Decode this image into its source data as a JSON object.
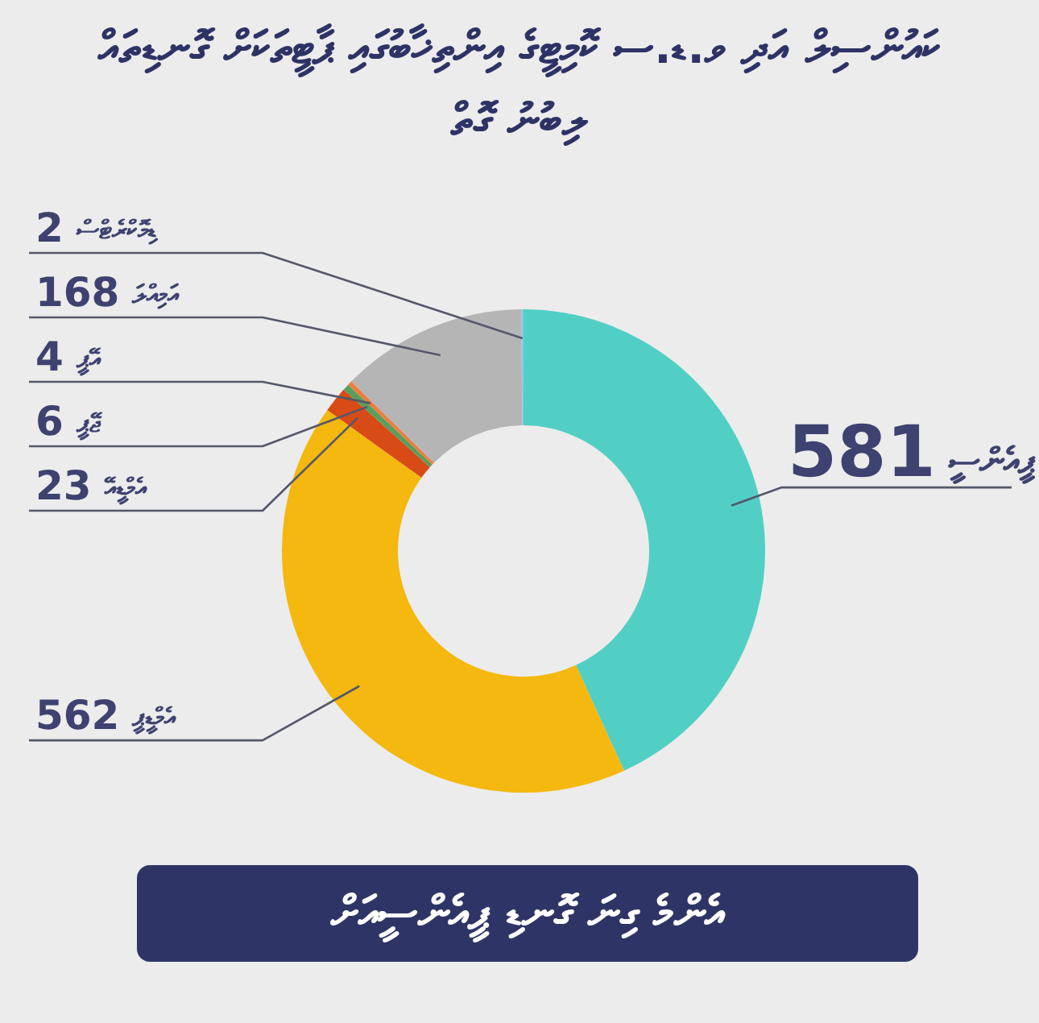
{
  "chart_data": {
    "type": "donut",
    "title": "ކައުންސިލް އަދި ވ.ޑ.ސ ކޮމިޓީގެ އިންތިޚާބުގައި ޕާޓީތަކަށް ގޮނޑިތައް ލިބުނު ގޮތް",
    "categories": [
      "ޕީއެންސީ",
      "އެމްޑީޕީ",
      "އެމްޑީއޭ",
      "ޖޭޕީ",
      "އޭޕީ",
      "އަމިއްލަ",
      "ޑިމޮކްރެޓްސް"
    ],
    "values": [
      581,
      562,
      23,
      6,
      4,
      168,
      2
    ],
    "colors": [
      "#52cfc4",
      "#f4b80e",
      "#d84b16",
      "#5b9e5c",
      "#ee7d3d",
      "#b5b5b5",
      "#8cc8ec"
    ],
    "data_labels": true,
    "annotations": [
      "އެންމެ ގިނަ ގޮނޑި ޕީއެންސީއަށް"
    ]
  }
}
